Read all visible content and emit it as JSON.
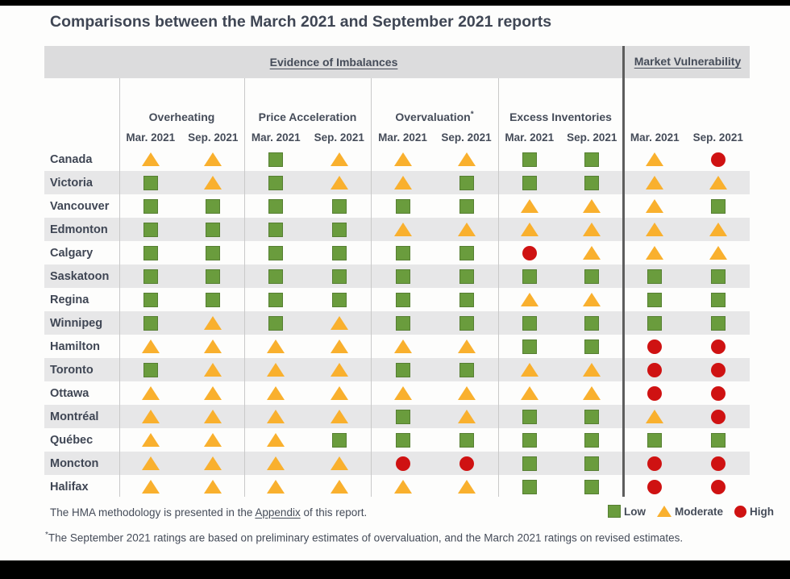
{
  "title": "Comparisons between the March 2021 and September 2021 reports",
  "band": {
    "evidence_label": "Evidence of Imbalances",
    "market_label": "Market Vulnerability"
  },
  "headers": {
    "groups": [
      {
        "label": "Overheating",
        "sup": ""
      },
      {
        "label": "Price Acceleration",
        "sup": ""
      },
      {
        "label": "Overvaluation",
        "sup": "*"
      },
      {
        "label": "Excess Inventories",
        "sup": ""
      }
    ],
    "mar": "Mar. 2021",
    "sep": "Sep. 2021"
  },
  "colors": {
    "low": "#6a9c3d",
    "moderate": "#f9b02e",
    "high": "#cf1212",
    "stripe": "#e7e7e8",
    "band": "#dcdcdd",
    "text": "#454c59"
  },
  "chart_data": {
    "type": "table",
    "title": "Comparisons between the March 2021 and September 2021 reports",
    "column_groups": [
      "Overheating",
      "Price Acceleration",
      "Overvaluation*",
      "Excess Inventories",
      "Market Vulnerability"
    ],
    "columns": [
      "Overheating Mar. 2021",
      "Overheating Sep. 2021",
      "Price Acceleration Mar. 2021",
      "Price Acceleration Sep. 2021",
      "Overvaluation Mar. 2021",
      "Overvaluation Sep. 2021",
      "Excess Inventories Mar. 2021",
      "Excess Inventories Sep. 2021",
      "Market Vulnerability Mar. 2021",
      "Market Vulnerability Sep. 2021"
    ],
    "rating_scale": {
      "L": "Low",
      "M": "Moderate",
      "H": "High"
    },
    "rows": [
      {
        "city": "Canada",
        "ratings": [
          "M",
          "M",
          "L",
          "M",
          "M",
          "M",
          "L",
          "L",
          "M",
          "H"
        ]
      },
      {
        "city": "Victoria",
        "ratings": [
          "L",
          "M",
          "L",
          "M",
          "M",
          "L",
          "L",
          "L",
          "M",
          "M"
        ]
      },
      {
        "city": "Vancouver",
        "ratings": [
          "L",
          "L",
          "L",
          "L",
          "L",
          "L",
          "M",
          "M",
          "M",
          "L"
        ]
      },
      {
        "city": "Edmonton",
        "ratings": [
          "L",
          "L",
          "L",
          "L",
          "M",
          "M",
          "M",
          "M",
          "M",
          "M"
        ]
      },
      {
        "city": "Calgary",
        "ratings": [
          "L",
          "L",
          "L",
          "L",
          "L",
          "L",
          "H",
          "M",
          "M",
          "M"
        ]
      },
      {
        "city": "Saskatoon",
        "ratings": [
          "L",
          "L",
          "L",
          "L",
          "L",
          "L",
          "L",
          "L",
          "L",
          "L"
        ]
      },
      {
        "city": "Regina",
        "ratings": [
          "L",
          "L",
          "L",
          "L",
          "L",
          "L",
          "M",
          "M",
          "L",
          "L"
        ]
      },
      {
        "city": "Winnipeg",
        "ratings": [
          "L",
          "M",
          "L",
          "M",
          "L",
          "L",
          "L",
          "L",
          "L",
          "L"
        ]
      },
      {
        "city": "Hamilton",
        "ratings": [
          "M",
          "M",
          "M",
          "M",
          "M",
          "M",
          "L",
          "L",
          "H",
          "H"
        ]
      },
      {
        "city": "Toronto",
        "ratings": [
          "L",
          "M",
          "M",
          "M",
          "L",
          "L",
          "M",
          "M",
          "H",
          "H"
        ]
      },
      {
        "city": "Ottawa",
        "ratings": [
          "M",
          "M",
          "M",
          "M",
          "M",
          "M",
          "M",
          "M",
          "H",
          "H"
        ]
      },
      {
        "city": "Montréal",
        "ratings": [
          "M",
          "M",
          "M",
          "M",
          "L",
          "M",
          "L",
          "L",
          "M",
          "H"
        ]
      },
      {
        "city": "Québec",
        "ratings": [
          "M",
          "M",
          "M",
          "L",
          "L",
          "L",
          "L",
          "L",
          "L",
          "L"
        ]
      },
      {
        "city": "Moncton",
        "ratings": [
          "M",
          "M",
          "M",
          "M",
          "H",
          "H",
          "L",
          "L",
          "H",
          "H"
        ]
      },
      {
        "city": "Halifax",
        "ratings": [
          "M",
          "M",
          "M",
          "M",
          "M",
          "M",
          "L",
          "L",
          "H",
          "H"
        ]
      }
    ],
    "legend": [
      {
        "code": "L",
        "label": "Low",
        "symbol": "green-square",
        "color": "#6a9c3d"
      },
      {
        "code": "M",
        "label": "Moderate",
        "symbol": "yellow-triangle",
        "color": "#f9b02e"
      },
      {
        "code": "H",
        "label": "High",
        "symbol": "red-circle",
        "color": "#cf1212"
      }
    ]
  },
  "footer": {
    "methodology_pre": "The HMA methodology is presented in the ",
    "methodology_link": "Appendix",
    "methodology_post": " of this report.",
    "footnote_marker": "*",
    "footnote_text": "The September 2021 ratings are based on preliminary estimates of overvaluation, and the March 2021 ratings on revised estimates."
  }
}
